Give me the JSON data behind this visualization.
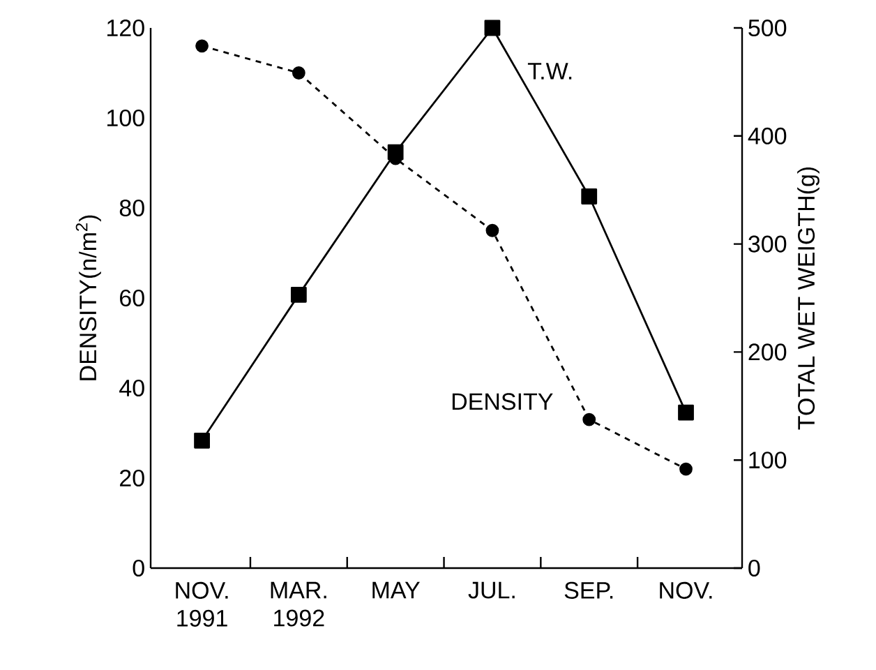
{
  "chart_data": {
    "type": "line",
    "ylabel": "DENSITY(n/m$^{2}$)",
    "y2label": "TOTAL WET WEIGTH(g)",
    "categories": [
      "NOV. 1991",
      "MAR. 1992",
      "MAY",
      "JUL.",
      "SEP.",
      "NOV."
    ],
    "series": [
      {
        "name": "DENSITY",
        "color": "#000000",
        "values": [
          116,
          110,
          91,
          75,
          33,
          22
        ],
        "marker": "circle",
        "line_style": "dashed"
      },
      {
        "name": "T.W.",
        "color": "#000000",
        "values": [
          118,
          253,
          385,
          500,
          344,
          144
        ],
        "marker": "square",
        "line_style": "solid",
        "axis": "y2"
      }
    ],
    "ylim": [
      0,
      120
    ],
    "yticks": [
      0,
      20,
      40,
      60,
      80,
      100,
      120
    ],
    "y2lim": [
      0,
      500
    ],
    "y2ticks": [
      0,
      100,
      200,
      300,
      400,
      500
    ],
    "legend": false
  }
}
